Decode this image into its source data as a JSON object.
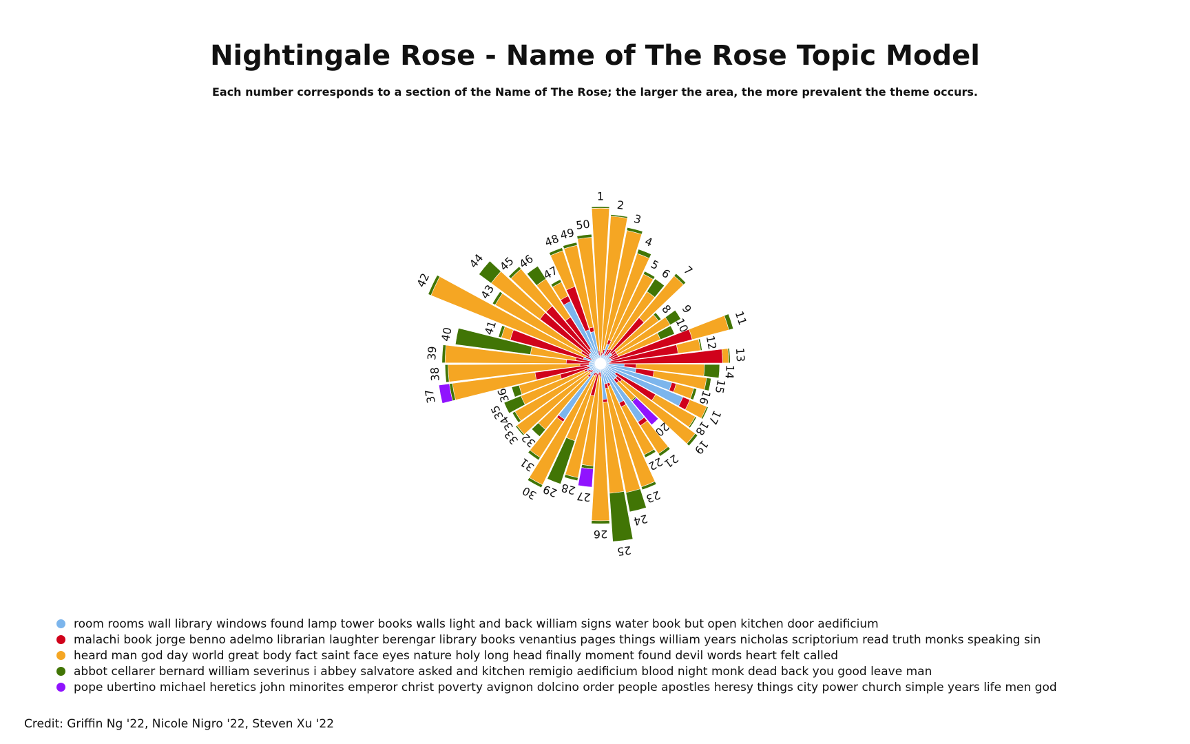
{
  "chart_data": {
    "type": "nightingale-rose",
    "title": "Nightingale Rose - Name of The Rose Topic Model",
    "subtitle": "Each number corresponds to a section of the Name of The Rose; the larger the area, the more prevalent the theme occurs.",
    "categories": [
      "1",
      "2",
      "3",
      "4",
      "5",
      "6",
      "7",
      "8",
      "9",
      "10",
      "11",
      "12",
      "13",
      "14",
      "15",
      "16",
      "17",
      "18",
      "19",
      "20",
      "21",
      "22",
      "23",
      "24",
      "25",
      "26",
      "27",
      "28",
      "29",
      "30",
      "31",
      "32",
      "33",
      "34",
      "35",
      "36",
      "37",
      "38",
      "39",
      "40",
      "41",
      "42",
      "43",
      "44",
      "45",
      "46",
      "47",
      "48",
      "49",
      "50"
    ],
    "series": [
      {
        "name": "room rooms wall library windows found lamp tower books walls light and back william signs water book but open kitchen door aedificium",
        "color": "#7cb5ec",
        "values": [
          0.01,
          0.02,
          0.03,
          0.1,
          0.02,
          0.03,
          0.06,
          0.06,
          0.03,
          0.04,
          0.04,
          0.03,
          0.02,
          0.12,
          0.2,
          0.45,
          0.55,
          0.08,
          0.1,
          0.1,
          0.42,
          0.25,
          0.1,
          0.1,
          0.2,
          0.02,
          0.02,
          0.03,
          0.03,
          0.03,
          0.4,
          0.06,
          0.03,
          0.04,
          0.06,
          0.04,
          0.05,
          0.04,
          0.04,
          0.03,
          0.08,
          0.03,
          0.05,
          0.06,
          0.06,
          0.08,
          0.42,
          0.2,
          0.18,
          0.02
        ]
      },
      {
        "name": "malachi book jorge benno adelmo librarian laughter berengar library books venantius pages things william years nicholas scriptorium read truth monks speaking sin",
        "color": "#d0021b",
        "values": [
          0.01,
          0.02,
          0.03,
          0.03,
          0.05,
          0.05,
          0.3,
          0.03,
          0.06,
          0.05,
          0.55,
          0.45,
          0.75,
          0.08,
          0.12,
          0.03,
          0.05,
          0.3,
          0.04,
          0.03,
          0.03,
          0.03,
          0.02,
          0.03,
          0.02,
          0.03,
          0.02,
          0.15,
          0.02,
          0.02,
          0.02,
          0.02,
          0.02,
          0.02,
          0.02,
          0.2,
          0.35,
          0.06,
          0.15,
          0.1,
          0.5,
          0.04,
          0.06,
          0.4,
          0.4,
          0.25,
          0.04,
          0.3,
          0.03,
          0.03
        ]
      },
      {
        "name": "heard man god day world great body fact saint face eyes nature holy long head finally moment found devil words heart felt called",
        "color": "#f5a623",
        "values": [
          0.97,
          0.9,
          0.8,
          0.6,
          0.55,
          0.45,
          0.36,
          0.35,
          0.4,
          0.3,
          0.25,
          0.15,
          0.04,
          0.45,
          0.35,
          0.12,
          0.12,
          0.3,
          0.6,
          0.15,
          0.22,
          0.35,
          0.7,
          0.7,
          0.6,
          0.95,
          0.6,
          0.55,
          0.45,
          0.8,
          0.28,
          0.45,
          0.6,
          0.55,
          0.45,
          0.28,
          0.55,
          0.87,
          0.8,
          0.3,
          0.06,
          1.1,
          0.65,
          0.4,
          0.32,
          0.3,
          0.1,
          0.25,
          0.55,
          0.75
        ]
      },
      {
        "name": "abbot cellarer bernard william severinus i abbey salvatore asked and kitchen remigio aedificium blood night monk dead back you good leave man",
        "color": "#417505",
        "values": [
          0.01,
          0.01,
          0.02,
          0.03,
          0.02,
          0.1,
          0.02,
          0.02,
          0.08,
          0.1,
          0.03,
          0.01,
          0.01,
          0.1,
          0.03,
          0.02,
          0.01,
          0.01,
          0.02,
          0.01,
          0.02,
          0.02,
          0.02,
          0.13,
          0.32,
          0.02,
          0.02,
          0.02,
          0.3,
          0.02,
          0.02,
          0.06,
          0.01,
          0.02,
          0.12,
          0.05,
          0.02,
          0.02,
          0.02,
          0.5,
          0.02,
          0.02,
          0.02,
          0.1,
          0.02,
          0.1,
          0.02,
          0.02,
          0.02,
          0.02
        ]
      },
      {
        "name": "pope ubertino michael heretics john minorites emperor christ poverty avignon dolcino order people apostles heresy things city power church simple years life men god",
        "color": "#9013fe",
        "values": [
          0.0,
          0.0,
          0.0,
          0.0,
          0.0,
          0.0,
          0.0,
          0.0,
          0.0,
          0.0,
          0.0,
          0.0,
          0.0,
          0.0,
          0.0,
          0.0,
          0.0,
          0.0,
          0.0,
          0.2,
          0.0,
          0.0,
          0.0,
          0.0,
          0.0,
          0.0,
          0.12,
          0.0,
          0.0,
          0.0,
          0.0,
          0.0,
          0.0,
          0.0,
          0.0,
          0.0,
          0.07,
          0.0,
          0.0,
          0.0,
          0.0,
          0.0,
          0.0,
          0.0,
          0.0,
          0.0,
          0.0,
          0.0,
          0.0,
          0.0
        ]
      }
    ],
    "legend_position": "bottom-left",
    "grid": false
  },
  "credit": "Credit: Griffin Ng '22, Nicole Nigro '22, Steven Xu '22"
}
